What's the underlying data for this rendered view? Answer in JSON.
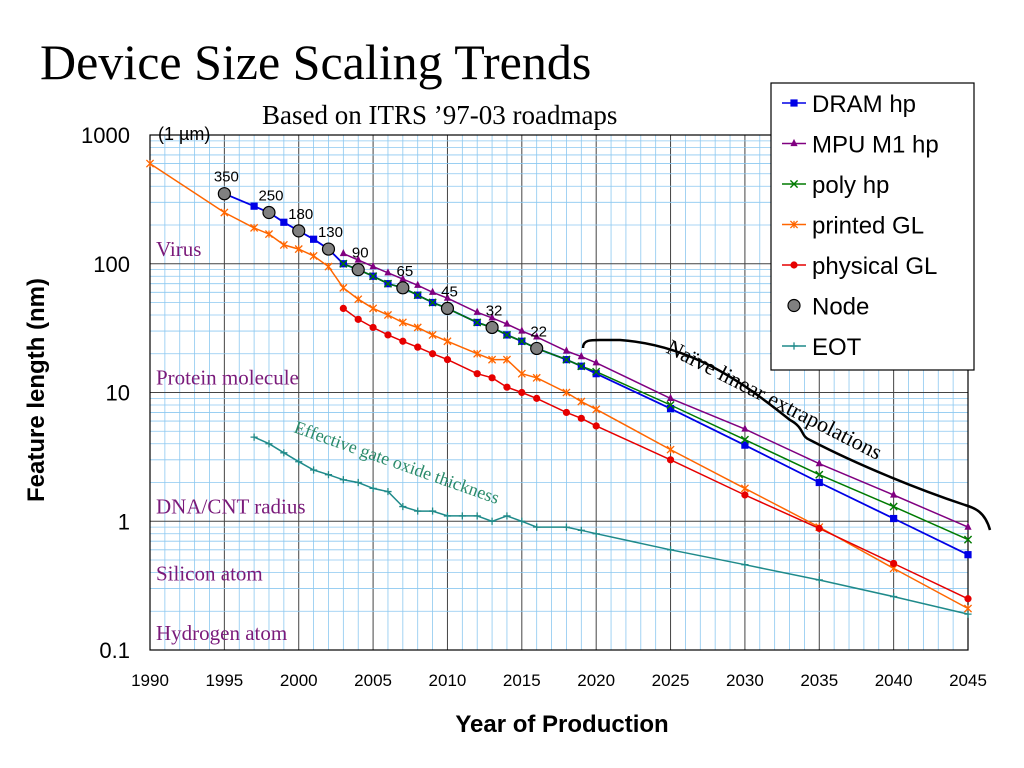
{
  "title": "Device Size Scaling Trends",
  "subtitle": "Based on ITRS ’97-03 roadmaps",
  "chart_data": {
    "type": "line",
    "xlabel": "Year of Production",
    "ylabel": "Feature length (nm)",
    "xlim": [
      1990,
      2045
    ],
    "ylim": [
      0.1,
      1000
    ],
    "yscale": "log",
    "xticks": [
      1990,
      1995,
      2000,
      2005,
      2010,
      2015,
      2020,
      2025,
      2030,
      2035,
      2040,
      2045
    ],
    "xtick_labels": [
      "1990",
      "1995",
      "2000",
      "2005",
      "2010",
      "2015",
      "2020",
      "2025",
      "2030",
      "2035",
      "2040",
      "2045"
    ],
    "yticks": [
      0.1,
      1,
      10,
      100,
      1000
    ],
    "ytick_labels": [
      "0.1",
      "1",
      "10",
      "100",
      "1000"
    ],
    "grid": true,
    "legend_position": "top-right",
    "series": [
      {
        "name": "DRAM hp",
        "color": "#0000e6",
        "marker": "square",
        "x": [
          1995,
          1997,
          1998,
          1999,
          2000,
          2001,
          2002,
          2003,
          2004,
          2005,
          2006,
          2007,
          2008,
          2009,
          2010,
          2012,
          2013,
          2014,
          2015,
          2016,
          2018,
          2019,
          2020,
          2025,
          2030,
          2035,
          2040,
          2045
        ],
        "y": [
          350,
          280,
          250,
          210,
          180,
          155,
          130,
          100,
          90,
          80,
          70,
          65,
          57,
          50,
          45,
          35,
          32,
          28,
          25,
          22,
          18,
          16,
          14,
          7.5,
          3.9,
          2.0,
          1.05,
          0.55
        ]
      },
      {
        "name": "MPU M1 hp",
        "color": "#800080",
        "marker": "triangle",
        "x": [
          2003,
          2004,
          2005,
          2006,
          2007,
          2008,
          2009,
          2010,
          2012,
          2013,
          2014,
          2015,
          2016,
          2018,
          2019,
          2020,
          2025,
          2030,
          2035,
          2040,
          2045
        ],
        "y": [
          120,
          107,
          95,
          85,
          76,
          68,
          60,
          54,
          42,
          38,
          34,
          30,
          27,
          21,
          19,
          17,
          9.0,
          5.2,
          2.8,
          1.6,
          0.9
        ]
      },
      {
        "name": "poly hp",
        "color": "#007a00",
        "marker": "x",
        "x": [
          2003,
          2004,
          2005,
          2006,
          2007,
          2008,
          2009,
          2010,
          2012,
          2013,
          2014,
          2015,
          2016,
          2018,
          2019,
          2020,
          2025,
          2030,
          2035,
          2040,
          2045
        ],
        "y": [
          100,
          90,
          80,
          70,
          65,
          57,
          50,
          45,
          35,
          32,
          28,
          25,
          22,
          18,
          16,
          14.5,
          8.0,
          4.3,
          2.3,
          1.3,
          0.72
        ]
      },
      {
        "name": "printed GL",
        "color": "#ff6600",
        "marker": "asterisk",
        "x": [
          1990,
          1995,
          1997,
          1998,
          1999,
          2000,
          2001,
          2002,
          2003,
          2004,
          2005,
          2006,
          2007,
          2008,
          2009,
          2010,
          2012,
          2013,
          2014,
          2015,
          2016,
          2018,
          2019,
          2020,
          2025,
          2030,
          2035,
          2040,
          2045
        ],
        "y": [
          600,
          250,
          190,
          170,
          140,
          130,
          115,
          95,
          65,
          53,
          45,
          40,
          35,
          32,
          28,
          25,
          20,
          18,
          18,
          14,
          13,
          10,
          8.5,
          7.4,
          3.6,
          1.8,
          0.9,
          0.43,
          0.21
        ]
      },
      {
        "name": "physical GL",
        "color": "#e60000",
        "marker": "circle",
        "x": [
          2003,
          2004,
          2005,
          2006,
          2007,
          2008,
          2009,
          2010,
          2012,
          2013,
          2014,
          2015,
          2016,
          2018,
          2019,
          2020,
          2025,
          2030,
          2035,
          2040,
          2045
        ],
        "y": [
          45,
          37,
          32,
          28,
          25,
          22.5,
          20,
          18,
          14,
          13,
          11,
          10,
          9,
          7.0,
          6.3,
          5.5,
          3.0,
          1.6,
          0.88,
          0.47,
          0.25
        ]
      },
      {
        "name": "Node",
        "color": "#808080",
        "marker": "node",
        "x": [
          1995,
          1998,
          2000,
          2002,
          2004,
          2007,
          2010,
          2013,
          2016
        ],
        "y": [
          350,
          250,
          180,
          130,
          90,
          65,
          45,
          32,
          22
        ],
        "labels": [
          "350",
          "250",
          "180",
          "130",
          "90",
          "65",
          "45",
          "32",
          "22"
        ]
      },
      {
        "name": "EOT",
        "color": "#1f8a8a",
        "marker": "plus",
        "x": [
          1997,
          1998,
          1999,
          2000,
          2001,
          2002,
          2003,
          2004,
          2005,
          2006,
          2007,
          2008,
          2009,
          2010,
          2011,
          2012,
          2013,
          2014,
          2015,
          2016,
          2018,
          2019,
          2020,
          2025,
          2030,
          2035,
          2040,
          2045
        ],
        "y": [
          4.5,
          4.0,
          3.4,
          2.9,
          2.5,
          2.3,
          2.1,
          2.0,
          1.8,
          1.7,
          1.3,
          1.2,
          1.2,
          1.1,
          1.1,
          1.1,
          1.0,
          1.1,
          1.0,
          0.9,
          0.9,
          0.85,
          0.8,
          0.6,
          0.46,
          0.35,
          0.26,
          0.19
        ]
      }
    ],
    "reference_labels": [
      {
        "text": "Virus",
        "y": 100
      },
      {
        "text": "Protein molecule",
        "y": 10
      },
      {
        "text": "DNA/CNT radius",
        "y": 1
      },
      {
        "text": "Silicon atom",
        "y": 0.3
      },
      {
        "text": "Hydrogen atom",
        "y": 0.1
      }
    ],
    "annotations": {
      "micron_label": "(1 µm)",
      "extrapolation_label": "Naïve linear extrapolations",
      "eot_label": "Effective gate oxide thickness"
    }
  }
}
